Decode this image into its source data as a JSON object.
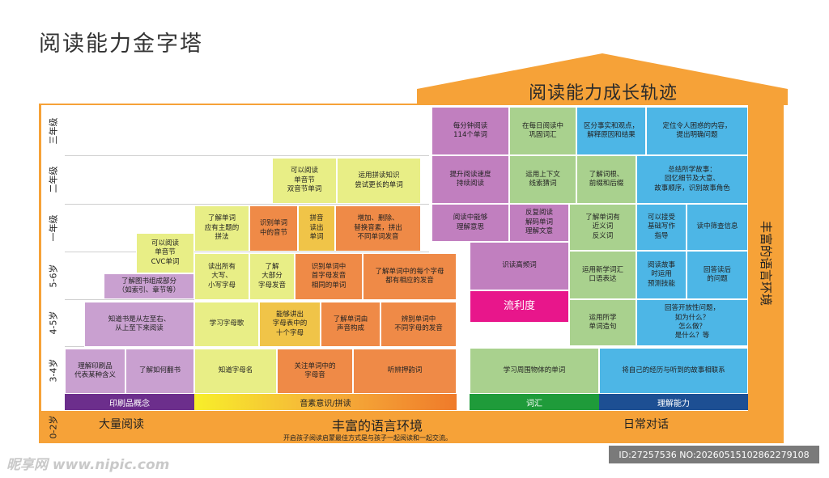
{
  "title": "阅读能力金字塔",
  "roof_title": "阅读能力成长轨迹",
  "grades": [
    "三年级",
    "二年级",
    "一年级",
    "5-6岁",
    "4-5岁",
    "3-4岁",
    "0-2岁"
  ],
  "right_label": "丰富的语言环境",
  "categories": {
    "print": "印刷品概念",
    "phonics": "音素意识/拼读",
    "vocab": "词汇",
    "comp": "理解能力"
  },
  "bottom": {
    "left": "大量阅读",
    "center": "丰富的语言环境",
    "right": "日常对话",
    "note": "开启孩子阅读启蒙最佳方式是与孩子一起阅读和一起交流。"
  },
  "watermark_left": "昵享网 www.nipic.com",
  "watermark_right": "ID:27257536 NO:20260515102862279108",
  "colors": {
    "orange": "#f6a238",
    "purple_cat": "#6c2e8c",
    "green_cat": "#1f9b3a",
    "blue_cat": "#1d4f93",
    "pink": "#e8168b"
  },
  "cells": [
    {
      "name": "print-understand-meaning",
      "text": "理解印刷品\n代表某种含义",
      "color": "#c9a0d0"
    },
    {
      "name": "print-flip-pages",
      "text": "了解如何翻书",
      "color": "#c9a0d0"
    },
    {
      "name": "print-left-right",
      "text": "知道书是从左至右、\n从上至下来阅读",
      "color": "#c9a0d0"
    },
    {
      "name": "print-book-parts",
      "text": "了解图书组成部分\n（如索引、章节等）",
      "color": "#c9a0d0"
    },
    {
      "name": "cvc-words",
      "text": "可以阅读\n单音节\nCVC单词",
      "color": "#e8ee86"
    },
    {
      "name": "know-letter-names",
      "text": "知道字母名",
      "color": "#e8ee86"
    },
    {
      "name": "alphabet-song",
      "text": "学习字母歌",
      "color": "#e8ee86"
    },
    {
      "name": "read-upper-lower",
      "text": "读出所有\n大写、\n小写字母",
      "color": "#e8ee86"
    },
    {
      "name": "recognize-rhymes",
      "text": "了解单词\n应有主题的\n拼法",
      "color": "#e8ee86"
    },
    {
      "name": "letter-sounds",
      "text": "了解\n大部分\n字母发音",
      "color": "#e8ee86"
    },
    {
      "name": "read-syllables",
      "text": "可以阅读\n单音节\n双音节单词",
      "color": "#e8ee86"
    },
    {
      "name": "first-sound",
      "text": "关注单词中的\n字母音",
      "color": "#ef8a47"
    },
    {
      "name": "rhyme-listen",
      "text": "听辨押韵词",
      "color": "#ef8a47"
    },
    {
      "name": "letters-in-ten",
      "text": "能够讲出\n字母表中的\n十个字母",
      "color": "#f0c448"
    },
    {
      "name": "words-made-of-sounds",
      "text": "了解单词由\n声音构成",
      "color": "#ef8a47"
    },
    {
      "name": "distinguish-sounds",
      "text": "辨别单词中\n不同字母的发音",
      "color": "#ef8a47"
    },
    {
      "name": "identify-syllable",
      "text": "识别单词\n中的音节",
      "color": "#ef8a47"
    },
    {
      "name": "spell-read",
      "text": "拼音\n读出\n单词",
      "color": "#f0c448"
    },
    {
      "name": "add-delete-sounds",
      "text": "增加、删除、\n替换音素，拼出\n不同单词发音",
      "color": "#ef8a47"
    },
    {
      "name": "initial-sounds-same",
      "text": "识别单词中\n首字母发音\n相同的单词",
      "color": "#ef8a47"
    },
    {
      "name": "each-letter-sound",
      "text": "了解单词中的每个字母\n都有相应的发音",
      "color": "#ef8a47"
    },
    {
      "name": "decode-longer",
      "text": "运用拼读知识\n尝试更长的单词",
      "color": "#e8ee86"
    },
    {
      "name": "wpm",
      "text": "每分钟阅读\n114个单词",
      "color": "#c17fbf"
    },
    {
      "name": "speed-consistent",
      "text": "提升阅读速度\n持续阅读",
      "color": "#c17fbf"
    },
    {
      "name": "understand-meaning",
      "text": "阅读中能够\n理解意思",
      "color": "#c17fbf"
    },
    {
      "name": "high-freq",
      "text": "识读高频词",
      "color": "#c17fbf"
    },
    {
      "name": "fluency",
      "text": "流利度",
      "color": "#e8168b"
    },
    {
      "name": "consolidate-vocab",
      "text": "在每日阅读中\n巩固词汇",
      "color": "#a9d18e"
    },
    {
      "name": "context-clues",
      "text": "运用上下文\n线索猜词",
      "color": "#a9d18e"
    },
    {
      "name": "repeat-read",
      "text": "反复阅读\n解码单词\n理解文意",
      "color": "#c17fbf"
    },
    {
      "name": "roots-affixes",
      "text": "了解词根、\n前缀和后缀",
      "color": "#a9d18e"
    },
    {
      "name": "syn-ant",
      "text": "了解单词有\n近义词\n反义词",
      "color": "#a9d18e"
    },
    {
      "name": "new-words",
      "text": "运用新学词汇\n口语表达",
      "color": "#a9d18e"
    },
    {
      "name": "use-new-words",
      "text": "运用所学\n单词造句",
      "color": "#a9d18e"
    },
    {
      "name": "learn-surrounding",
      "text": "学习周围物体的单词",
      "color": "#a9d18e"
    },
    {
      "name": "fact-opinion",
      "text": "区分事实和观点，\n解释原因和结果",
      "color": "#4db6e6"
    },
    {
      "name": "confusing",
      "text": "定位令人困惑的内容，\n提出明确问题",
      "color": "#4db6e6"
    },
    {
      "name": "summarize",
      "text": "总结所学故事：\n回忆细节及大意、\n故事顺序，识别故事角色",
      "color": "#4db6e6"
    },
    {
      "name": "basic-writing",
      "text": "可以接受\n基础写作\n指导",
      "color": "#4db6e6"
    },
    {
      "name": "find-info",
      "text": "读中筛查信息",
      "color": "#4db6e6"
    },
    {
      "name": "predict",
      "text": "阅读故事\n时运用\n预测技能",
      "color": "#4db6e6"
    },
    {
      "name": "answer-after",
      "text": "回答读后\n的问题",
      "color": "#4db6e6"
    },
    {
      "name": "open-questions",
      "text": "回答开放性问题，\n如为什么？\n怎么做？\n是什么？等",
      "color": "#4db6e6"
    },
    {
      "name": "connect-experience",
      "text": "将自己的经历与听到的故事相联系",
      "color": "#4db6e6"
    }
  ]
}
